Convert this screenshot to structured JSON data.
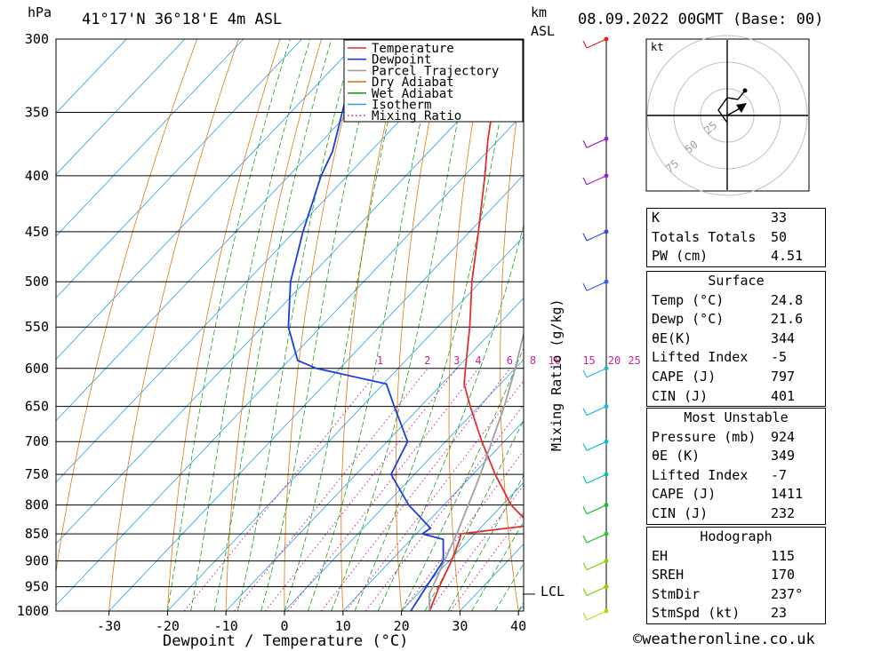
{
  "header": {
    "unit_hpa": "hPa",
    "location": "41°17'N  36°18'E  4m  ASL",
    "km": "km",
    "asl": "ASL",
    "datetime": "08.09.2022  00GMT  (Base: 00)"
  },
  "colors": {
    "temperature": "#e03030",
    "dewpoint": "#1a3fd8",
    "parcel": "#a0a0a0",
    "dry_adiabat": "#e07a10",
    "wet_adiabat": "#1aa01a",
    "isotherm": "#2aa0e0",
    "mixing_ratio": "#d0209a"
  },
  "chart_data": {
    "type": "line",
    "title": "",
    "xlabel": "Dewpoint / Temperature (°C)",
    "ylabel": "hPa",
    "y2label": "Mixing Ratio (g/kg)",
    "xlim": [
      -40,
      40
    ],
    "ylim": [
      1000,
      300
    ],
    "y_scale": "log",
    "skew": true,
    "pressure_ticks": [
      300,
      350,
      400,
      450,
      500,
      550,
      600,
      650,
      700,
      750,
      800,
      850,
      900,
      950,
      1000
    ],
    "temp_ticks": [
      -30,
      -20,
      -10,
      0,
      10,
      20,
      30,
      40
    ],
    "mixing_ratio_labels": [
      "1",
      "2",
      "3",
      "4",
      "6",
      "8",
      "10",
      "15",
      "20",
      "25"
    ],
    "mixing_ratio_values": [
      1,
      2,
      3,
      4,
      6,
      8,
      10,
      15,
      20,
      25
    ],
    "lcl_label": "LCL",
    "lcl_pressure": 965,
    "legend": [
      "Temperature",
      "Dewpoint",
      "Parcel Trajectory",
      "Dry Adiabat",
      "Wet Adiabat",
      "Isotherm",
      "Mixing Ratio"
    ],
    "legend_position": "top-right",
    "series": [
      {
        "name": "Temperature",
        "p": [
          1000,
          950,
          900,
          860,
          850,
          835,
          800,
          750,
          700,
          650,
          620,
          600,
          550,
          500,
          450,
          400,
          370,
          300
        ],
        "t": [
          24.8,
          22.5,
          20.4,
          18.3,
          17.6,
          28.2,
          21.5,
          13.8,
          6.2,
          -1.5,
          -6.2,
          -8.5,
          -14.5,
          -21.5,
          -28.5,
          -36.5,
          -42,
          -55.5
        ]
      },
      {
        "name": "Dewpoint",
        "p": [
          1000,
          950,
          900,
          860,
          850,
          840,
          800,
          750,
          700,
          650,
          620,
          600,
          590,
          550,
          500,
          450,
          400,
          380,
          300
        ],
        "t": [
          21.6,
          20.3,
          19,
          15.5,
          11,
          11.5,
          4,
          -4,
          -6.5,
          -14.5,
          -19.5,
          -34,
          -38.5,
          -45.5,
          -52.5,
          -58.5,
          -64.5,
          -66.5,
          -80
        ]
      },
      {
        "name": "Parcel Trajectory",
        "p": [
          1000,
          965,
          900,
          850,
          800,
          750,
          700,
          650,
          600,
          550,
          500,
          450,
          400,
          350
        ],
        "t": [
          24.8,
          22,
          19.2,
          16.9,
          14.2,
          11.3,
          7.9,
          4.3,
          0,
          -5,
          -11,
          -18,
          -26.5,
          -36.5
        ]
      }
    ],
    "wind_profile": {
      "p": [
        1000,
        950,
        900,
        850,
        800,
        750,
        700,
        650,
        600,
        500,
        450,
        400,
        370,
        300
      ],
      "colors": [
        "#c8d400",
        "#90d000",
        "#80d000",
        "#30c030",
        "#18c030",
        "#10c0a0",
        "#10c0d0",
        "#20b8e0",
        "#20b8e0",
        "#3060e0",
        "#3048e0",
        "#a020d0",
        "#a020d0",
        "#e02020"
      ]
    },
    "hodograph": {
      "unit": "kt",
      "rings": [
        25,
        50,
        75
      ]
    }
  },
  "indices": {
    "rows": [
      {
        "label": "K",
        "value": "33"
      },
      {
        "label": "Totals Totals",
        "value": "50"
      },
      {
        "label": "PW (cm)",
        "value": "4.51"
      }
    ]
  },
  "surface": {
    "title": "Surface",
    "rows": [
      {
        "label": "Temp (°C)",
        "value": "24.8"
      },
      {
        "label": "Dewp (°C)",
        "value": "21.6"
      },
      {
        "label": "θE(K)",
        "value": "344"
      },
      {
        "label": "Lifted Index",
        "value": "-5"
      },
      {
        "label": "CAPE (J)",
        "value": "797"
      },
      {
        "label": "CIN (J)",
        "value": "401"
      }
    ]
  },
  "most_unstable": {
    "title": "Most Unstable",
    "rows": [
      {
        "label": "Pressure (mb)",
        "value": "924"
      },
      {
        "label": "θE (K)",
        "value": "349"
      },
      {
        "label": "Lifted Index",
        "value": "-7"
      },
      {
        "label": "CAPE (J)",
        "value": "1411"
      },
      {
        "label": "CIN (J)",
        "value": "232"
      }
    ]
  },
  "hodograph_table": {
    "title": "Hodograph",
    "rows": [
      {
        "label": "EH",
        "value": "115"
      },
      {
        "label": "SREH",
        "value": "170"
      },
      {
        "label": "StmDir",
        "value": "237°"
      },
      {
        "label": "StmSpd (kt)",
        "value": "23"
      }
    ]
  },
  "footer": {
    "credit": "©weatheronline.co.uk"
  }
}
